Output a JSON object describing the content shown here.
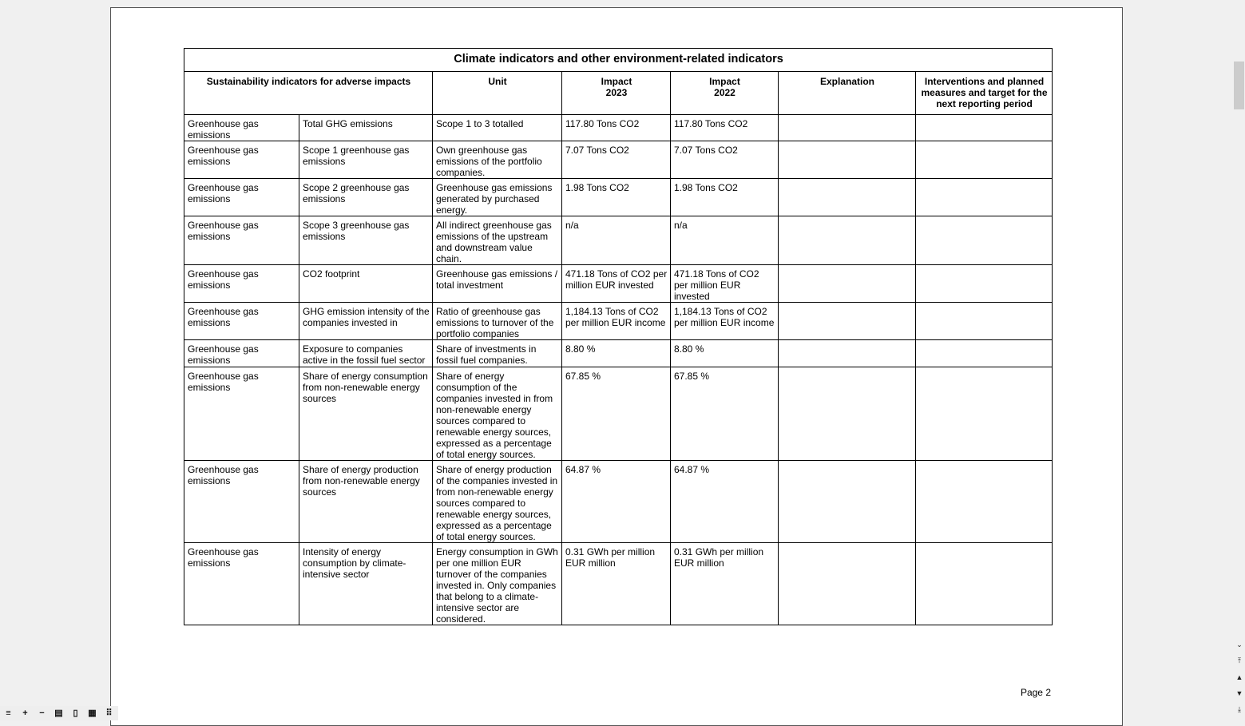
{
  "table": {
    "title": "Climate indicators and other environment-related indicators",
    "headers": [
      "Sustainability indicators for adverse impacts",
      "Unit",
      "Impact\n2023",
      "Impact\n2022",
      "Explanation",
      "Interventions and planned measures and target for the next reporting period"
    ],
    "rows": [
      [
        "Greenhouse gas emissions",
        "Total GHG emissions",
        "Scope 1 to 3 totalled",
        "117.80 Tons CO2",
        "117.80 Tons CO2",
        "",
        ""
      ],
      [
        "Greenhouse gas emissions",
        "Scope 1 greenhouse gas emissions",
        "Own greenhouse gas emissions of the portfolio companies.",
        "7.07 Tons CO2",
        "7.07 Tons CO2",
        "",
        ""
      ],
      [
        "Greenhouse gas emissions",
        "Scope 2 greenhouse gas emissions",
        "Greenhouse gas emissions generated by purchased energy.",
        "1.98 Tons CO2",
        "1.98 Tons CO2",
        "",
        ""
      ],
      [
        "Greenhouse gas emissions",
        "Scope 3 greenhouse gas emissions",
        "All indirect greenhouse gas emissions of the upstream and downstream value chain.",
        "n/a",
        "n/a",
        "",
        ""
      ],
      [
        "Greenhouse gas emissions",
        "CO2 footprint",
        "Greenhouse gas emissions / total investment",
        "471.18 Tons of CO2 per million EUR invested",
        "471.18 Tons of CO2 per million EUR invested",
        "",
        ""
      ],
      [
        "Greenhouse gas emissions",
        "GHG emission intensity of the companies invested in",
        "Ratio of greenhouse gas emissions to turnover of the portfolio companies",
        "1,184.13 Tons of CO2 per million EUR income",
        "1,184.13 Tons of CO2 per million EUR income",
        "",
        ""
      ],
      [
        "Greenhouse gas emissions",
        "Exposure to companies active in the fossil fuel sector",
        "Share of investments in fossil fuel companies.",
        "8.80 %",
        "8.80 %",
        "",
        ""
      ],
      [
        "Greenhouse gas emissions",
        "Share of energy consumption from non-renewable energy sources",
        "Share of energy consumption of the companies invested in from non-renewable energy sources compared to renewable energy sources, expressed as a percentage of total energy sources.",
        "67.85 %",
        "67.85 %",
        "",
        ""
      ],
      [
        "Greenhouse gas emissions",
        "Share of energy production from non-renewable energy sources",
        "Share of energy production of the companies invested in from non-renewable energy sources compared to renewable energy sources, expressed as a percentage of total energy sources.",
        "64.87 %",
        "64.87 %",
        "",
        ""
      ],
      [
        "Greenhouse gas emissions",
        "Intensity of energy consumption by climate-intensive sector",
        "Energy consumption in GWh per one million EUR turnover of the companies invested in. Only companies that belong to a climate-intensive sector are considered.",
        "0.31 GWh per million EUR million",
        "0.31 GWh per million EUR million",
        "",
        ""
      ]
    ]
  },
  "page_label": "Page 2",
  "toolbar": {
    "icons": [
      "menu-icon",
      "zoom-in-icon",
      "zoom-out-icon",
      "single-page-icon",
      "page-width-icon",
      "grid-2-icon",
      "grid-3-icon"
    ],
    "glyphs": [
      "≡",
      "+",
      "−",
      "▤",
      "▯",
      "▦",
      "⠿"
    ]
  },
  "scrollbar": {
    "glyphs": [
      "⌄",
      "⤒",
      "▲",
      "▼",
      "⤓"
    ]
  }
}
